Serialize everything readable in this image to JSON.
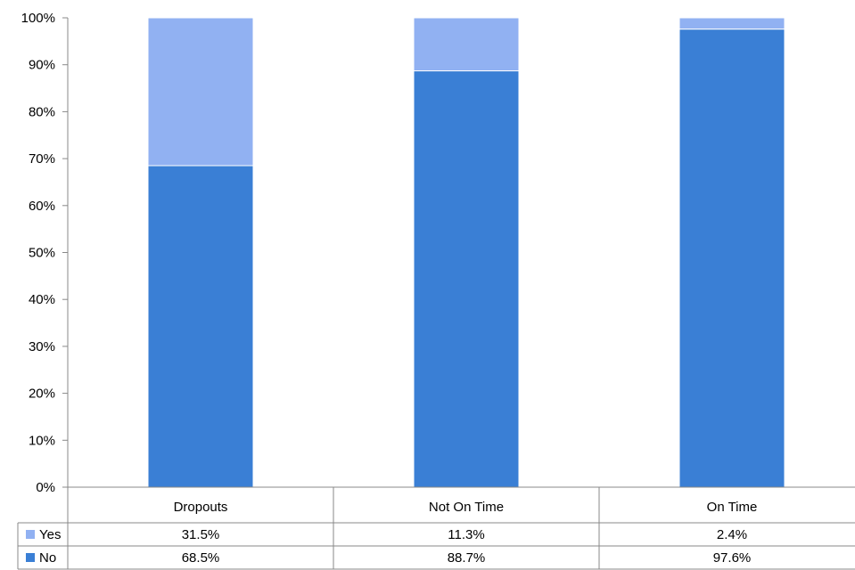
{
  "chart_data": {
    "type": "bar",
    "stacked": true,
    "percent_stacked": true,
    "categories": [
      "Dropouts",
      "Not On Time",
      "On Time"
    ],
    "series": [
      {
        "name": "No",
        "color": "#3a7fd5",
        "values": [
          68.5,
          88.7,
          97.6
        ],
        "labels": [
          "68.5%",
          "88.7%",
          "97.6%"
        ]
      },
      {
        "name": "Yes",
        "color": "#91b1f2",
        "values": [
          31.5,
          11.3,
          2.4
        ],
        "labels": [
          "31.5%",
          "11.3%",
          "2.4%"
        ]
      }
    ],
    "ylim": [
      0,
      100
    ],
    "yticks": [
      0,
      10,
      20,
      30,
      40,
      50,
      60,
      70,
      80,
      90,
      100
    ],
    "ytick_labels": [
      "0%",
      "10%",
      "20%",
      "30%",
      "40%",
      "50%",
      "60%",
      "70%",
      "80%",
      "90%",
      "100%"
    ],
    "grid": false,
    "legend": "data-table",
    "data_table": true,
    "table_row_order": [
      "Yes",
      "No"
    ]
  }
}
